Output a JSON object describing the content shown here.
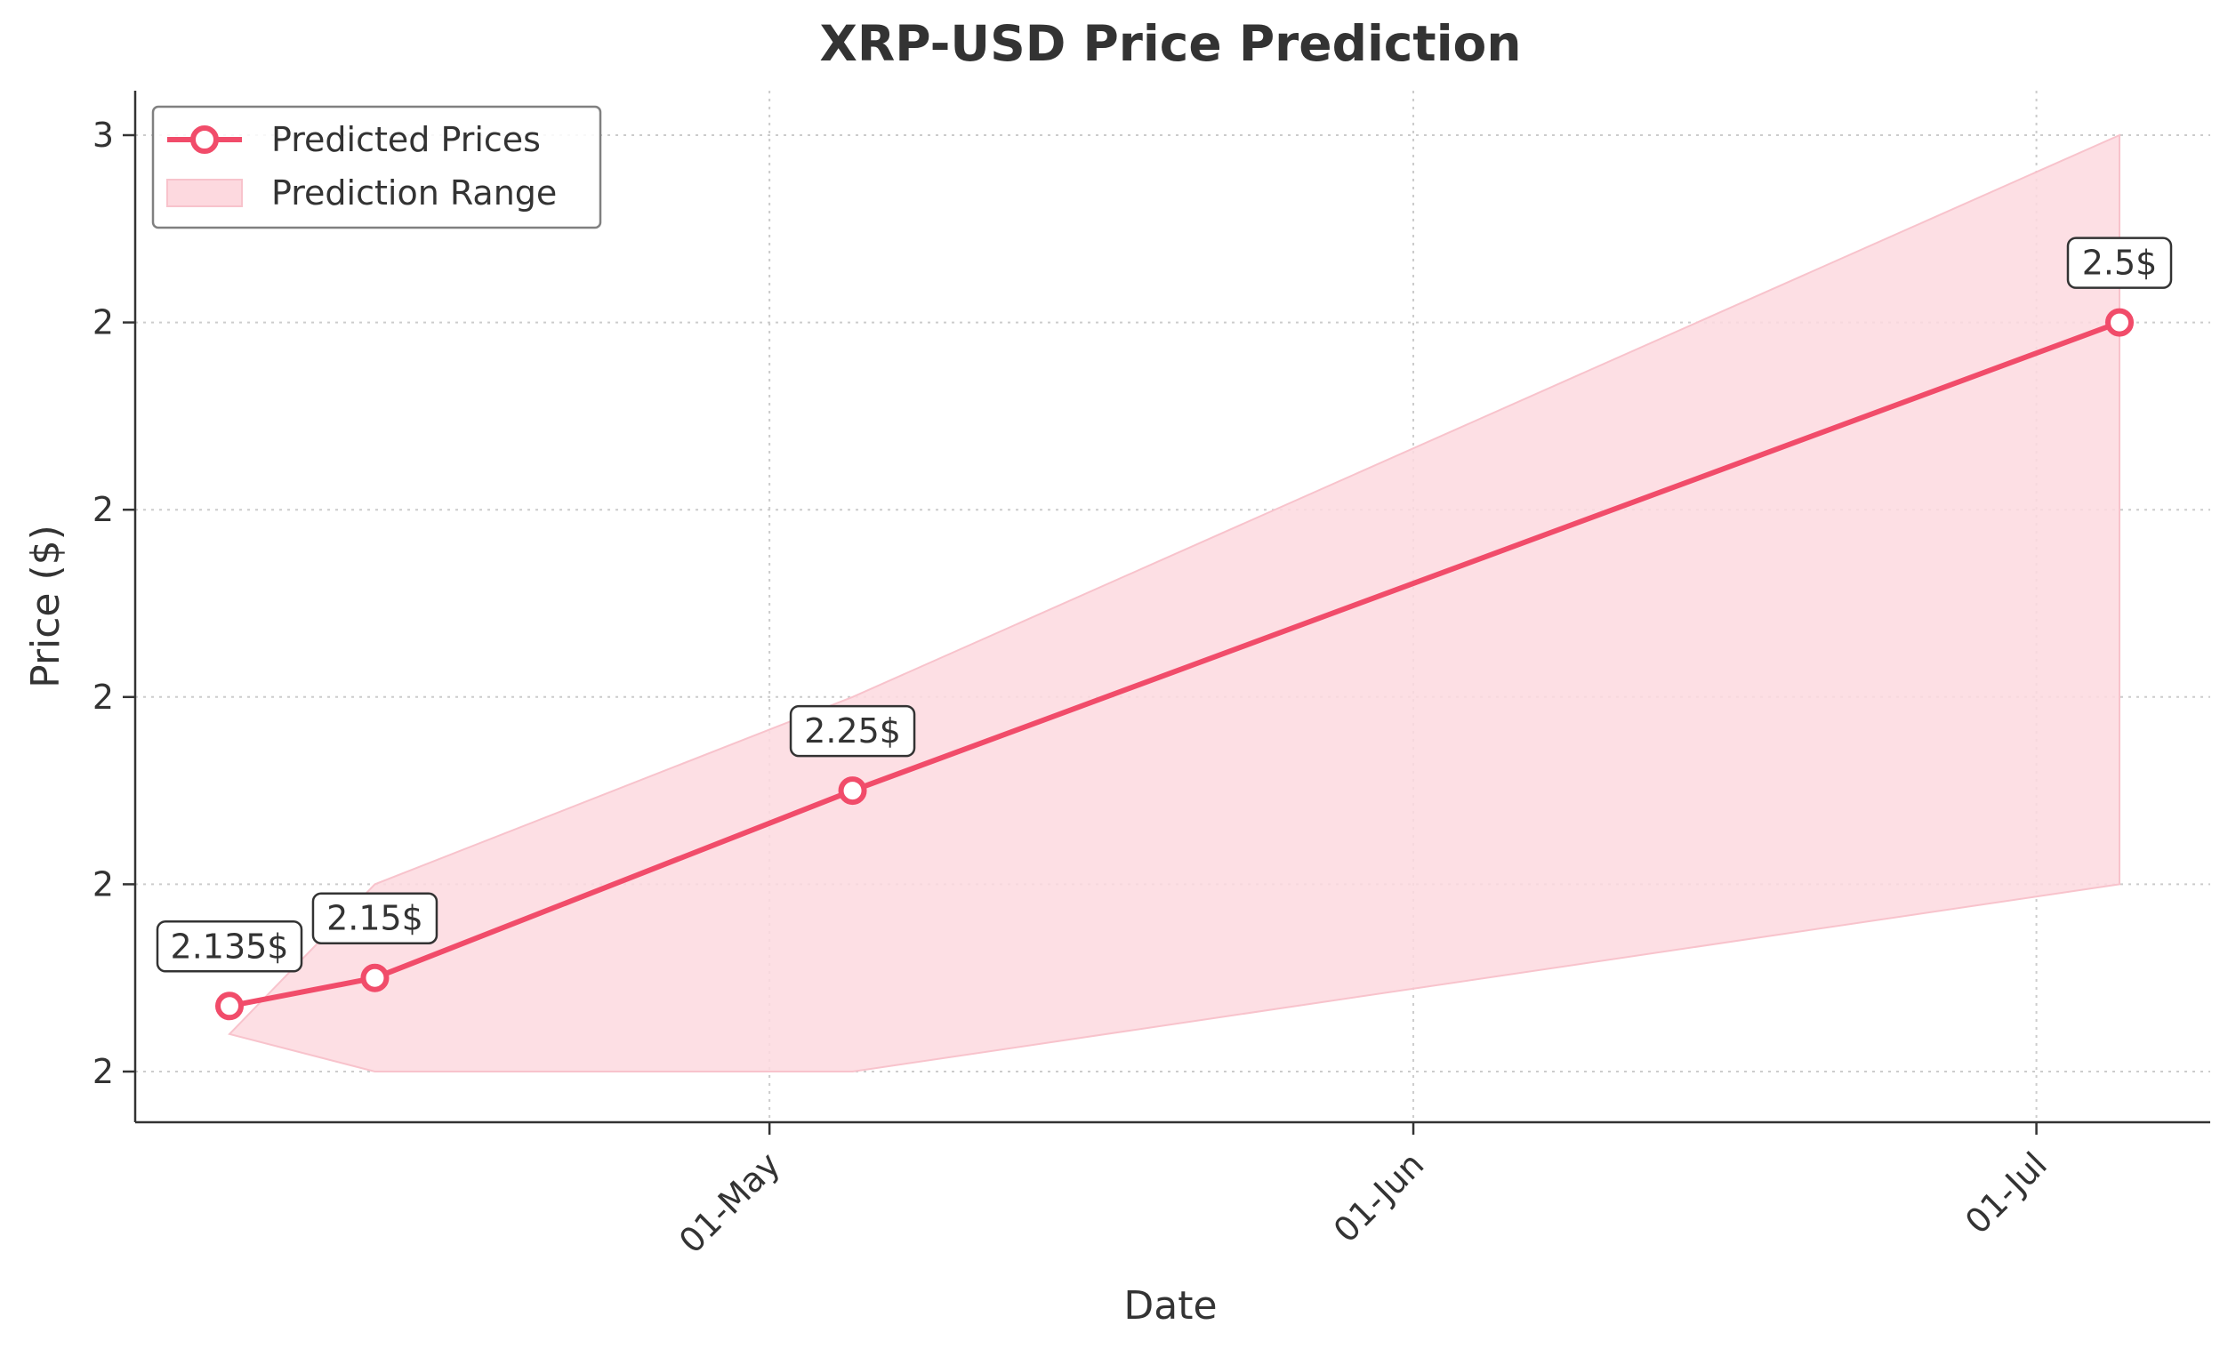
{
  "chart_data": {
    "type": "line",
    "title": "XRP-USD Price Prediction",
    "xlabel": "Date",
    "ylabel": "Price ($)",
    "x_tick_labels": [
      "01-May",
      "01-Jun",
      "01-Jul"
    ],
    "y_tick_labels": [
      "2",
      "2",
      "2",
      "2",
      "2",
      "3"
    ],
    "y_ticks": [
      2.1,
      2.2,
      2.3,
      2.4,
      2.5,
      2.6
    ],
    "ylim": [
      2.075,
      2.625
    ],
    "xlim": [
      "2025-04-01",
      "2025-07-10"
    ],
    "grid": true,
    "legend_position": "top-left",
    "series": [
      {
        "name": "Predicted Prices",
        "kind": "line",
        "color": "#f14c6a",
        "x": [
          "2025-04-05",
          "2025-04-12",
          "2025-05-05",
          "2025-07-05"
        ],
        "y": [
          2.135,
          2.15,
          2.25,
          2.5
        ],
        "data_labels": [
          "2.135$",
          "2.15$",
          "2.25$",
          "2.5$"
        ]
      },
      {
        "name": "Prediction Range",
        "kind": "band",
        "color": "#fdd9df",
        "x": [
          "2025-04-05",
          "2025-04-12",
          "2025-05-05",
          "2025-07-05"
        ],
        "lower": [
          2.12,
          2.1,
          2.1,
          2.2
        ],
        "upper": [
          2.12,
          2.2,
          2.3,
          2.6
        ]
      }
    ]
  }
}
